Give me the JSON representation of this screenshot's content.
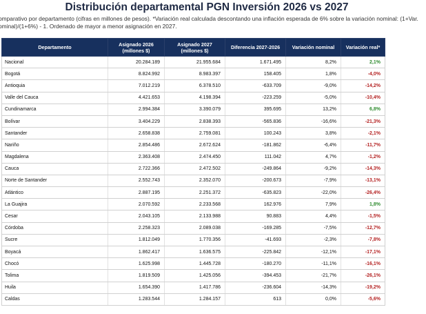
{
  "title": "Distribución departamental PGN Inversión 2026 vs 2027",
  "subtitle": "omparativo por departamento (cifras en millones de pesos). *Variación real calculada descontando una inflación esperada de 6% sobre la variación nominal: (1+Var. ominal)/(1+6%) - 1. Ordenado de mayor a menor asignación en 2027.",
  "colors": {
    "header_bg": "#17305e",
    "negative": "#b42222",
    "positive": "#2e8b2e"
  },
  "table": {
    "headers": [
      "Departamento",
      "Asignado 2026 (millones $)",
      "Asignado 2027 (millones $)",
      "Diferencia 2027-2026",
      "Variación nominal",
      "Variación real*"
    ],
    "rows": [
      {
        "dept": "Nacional",
        "a2026": "20.284.189",
        "a2027": "21.955.684",
        "diff": "1.671.495",
        "nominal": "8,2%",
        "real": "2,1%",
        "sign": "pos"
      },
      {
        "dept": "Bogotá",
        "a2026": "8.824.992",
        "a2027": "8.983.397",
        "diff": "158.405",
        "nominal": "1,8%",
        "real": "-4,0%",
        "sign": "neg"
      },
      {
        "dept": "Antioquia",
        "a2026": "7.012.219",
        "a2027": "6.378.510",
        "diff": "-633.709",
        "nominal": "-9,0%",
        "real": "-14,2%",
        "sign": "neg"
      },
      {
        "dept": "Valle del Cauca",
        "a2026": "4.421.653",
        "a2027": "4.198.394",
        "diff": "-223.259",
        "nominal": "-5,0%",
        "real": "-10,4%",
        "sign": "neg"
      },
      {
        "dept": "Cundinamarca",
        "a2026": "2.994.384",
        "a2027": "3.390.079",
        "diff": "395.695",
        "nominal": "13,2%",
        "real": "6,8%",
        "sign": "pos"
      },
      {
        "dept": "Bolívar",
        "a2026": "3.404.229",
        "a2027": "2.838.393",
        "diff": "-565.836",
        "nominal": "-16,6%",
        "real": "-21,3%",
        "sign": "neg"
      },
      {
        "dept": "Santander",
        "a2026": "2.658.838",
        "a2027": "2.759.081",
        "diff": "100.243",
        "nominal": "3,8%",
        "real": "-2,1%",
        "sign": "neg"
      },
      {
        "dept": "Nariño",
        "a2026": "2.854.486",
        "a2027": "2.672.624",
        "diff": "-181.862",
        "nominal": "-6,4%",
        "real": "-11,7%",
        "sign": "neg"
      },
      {
        "dept": "Magdalena",
        "a2026": "2.363.408",
        "a2027": "2.474.450",
        "diff": "111.042",
        "nominal": "4,7%",
        "real": "-1,2%",
        "sign": "neg"
      },
      {
        "dept": "Cauca",
        "a2026": "2.722.366",
        "a2027": "2.472.502",
        "diff": "-249.864",
        "nominal": "-9,2%",
        "real": "-14,3%",
        "sign": "neg"
      },
      {
        "dept": "Norte de Santander",
        "a2026": "2.552.743",
        "a2027": "2.352.070",
        "diff": "-200.673",
        "nominal": "-7,9%",
        "real": "-13,1%",
        "sign": "neg"
      },
      {
        "dept": "Atlántico",
        "a2026": "2.887.195",
        "a2027": "2.251.372",
        "diff": "-635.823",
        "nominal": "-22,0%",
        "real": "-26,4%",
        "sign": "neg"
      },
      {
        "dept": "La Guajira",
        "a2026": "2.070.592",
        "a2027": "2.233.568",
        "diff": "162.976",
        "nominal": "7,9%",
        "real": "1,8%",
        "sign": "pos"
      },
      {
        "dept": "Cesar",
        "a2026": "2.043.105",
        "a2027": "2.133.988",
        "diff": "90.883",
        "nominal": "4,4%",
        "real": "-1,5%",
        "sign": "neg"
      },
      {
        "dept": "Córdoba",
        "a2026": "2.258.323",
        "a2027": "2.089.038",
        "diff": "-169.285",
        "nominal": "-7,5%",
        "real": "-12,7%",
        "sign": "neg"
      },
      {
        "dept": "Sucre",
        "a2026": "1.812.049",
        "a2027": "1.770.356",
        "diff": "-41.693",
        "nominal": "-2,3%",
        "real": "-7,8%",
        "sign": "neg"
      },
      {
        "dept": "Boyacá",
        "a2026": "1.862.417",
        "a2027": "1.636.575",
        "diff": "-225.842",
        "nominal": "-12,1%",
        "real": "-17,1%",
        "sign": "neg"
      },
      {
        "dept": "Chocó",
        "a2026": "1.625.998",
        "a2027": "1.445.728",
        "diff": "-180.270",
        "nominal": "-11,1%",
        "real": "-16,1%",
        "sign": "neg"
      },
      {
        "dept": "Tolima",
        "a2026": "1.819.509",
        "a2027": "1.425.056",
        "diff": "-394.453",
        "nominal": "-21,7%",
        "real": "-26,1%",
        "sign": "neg"
      },
      {
        "dept": "Huila",
        "a2026": "1.654.390",
        "a2027": "1.417.786",
        "diff": "-236.604",
        "nominal": "-14,3%",
        "real": "-19,2%",
        "sign": "neg"
      },
      {
        "dept": "Caldas",
        "a2026": "1.283.544",
        "a2027": "1.284.157",
        "diff": "613",
        "nominal": "0,0%",
        "real": "-5,6%",
        "sign": "neg"
      }
    ]
  }
}
